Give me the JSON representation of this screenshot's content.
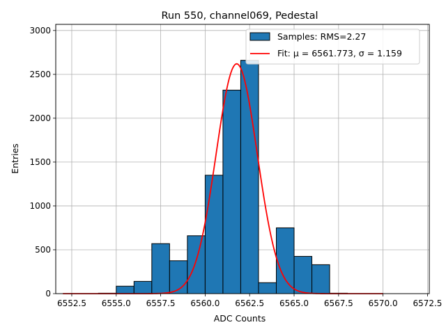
{
  "chart_data": {
    "type": "bar",
    "title": "Run 550, channel069, Pedestal",
    "xlabel": "ADC Counts",
    "ylabel": "Entries",
    "xlim": [
      6551.6,
      6572.6
    ],
    "ylim": [
      0,
      3070
    ],
    "xticks": [
      "6552.5",
      "6555.0",
      "6557.5",
      "6560.0",
      "6562.5",
      "6565.0",
      "6567.5",
      "6570.0",
      "6572.5"
    ],
    "xtick_values": [
      6552.5,
      6555.0,
      6557.5,
      6560.0,
      6562.5,
      6565.0,
      6567.5,
      6570.0,
      6572.5
    ],
    "yticks": [
      "0",
      "500",
      "1000",
      "1500",
      "2000",
      "2500",
      "3000"
    ],
    "ytick_values": [
      0,
      500,
      1000,
      1500,
      2000,
      2500,
      3000
    ],
    "grid": true,
    "legend_position": "top-right",
    "histogram": {
      "name": "Samples: RMS=2.27",
      "bin_edges": [
        6553.0,
        6554.0,
        6555.0,
        6556.0,
        6557.0,
        6558.0,
        6559.0,
        6560.0,
        6561.0,
        6562.0,
        6563.0,
        6564.0,
        6565.0,
        6566.0,
        6567.0,
        6568.0,
        6569.0,
        6570.0
      ],
      "values": [
        0,
        5,
        85,
        140,
        570,
        375,
        660,
        1350,
        2320,
        2660,
        125,
        750,
        425,
        330,
        5,
        0,
        0
      ],
      "color": "#1f77b4",
      "edge_color": "#000000"
    },
    "fit": {
      "name": "Fit: μ = 6561.773, σ = 1.159",
      "mu": 6561.773,
      "sigma": 1.159,
      "amplitude": 2620,
      "x_range": [
        6552.0,
        6570.0
      ],
      "color": "#ff0000"
    }
  }
}
